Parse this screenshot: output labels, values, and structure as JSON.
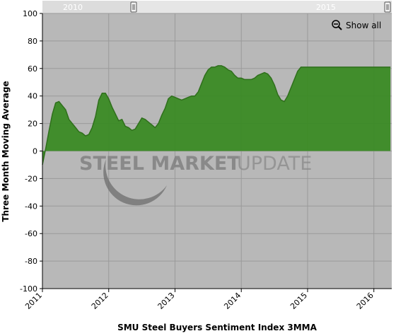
{
  "chart_data": {
    "type": "area",
    "title": "",
    "xlabel": "SMU Steel Buyers Sentiment Index 3MMA",
    "ylabel": "Three Month Moving Average",
    "ylim": [
      -100,
      100
    ],
    "yticks": [
      100,
      80,
      60,
      40,
      20,
      0,
      -20,
      -40,
      -60,
      -80,
      -100
    ],
    "xlim": [
      2011.0,
      2016.27
    ],
    "xticks": [
      {
        "value": 2011,
        "label": "2011"
      },
      {
        "value": 2012,
        "label": "2012"
      },
      {
        "value": 2013,
        "label": "2013"
      },
      {
        "value": 2014,
        "label": "2014"
      },
      {
        "value": 2015,
        "label": "2015"
      },
      {
        "value": 2016,
        "label": "2016"
      }
    ],
    "grid": true,
    "legend": "none",
    "navigator": {
      "labels": [
        {
          "value": 2010,
          "label": "2010"
        },
        {
          "value": 2015,
          "label": "2015"
        }
      ]
    },
    "zoom_button_label": "Show all",
    "watermark": {
      "bold_part": "STEEL MARKET",
      "light_part": "UPDATE"
    },
    "colors": {
      "area_fill": "#3a8a24",
      "area_line": "#2f6f1c",
      "plot_bg": "#b8b8b8",
      "grid": "#9a9a9a",
      "navigator_bg": "#dcdcdc"
    },
    "series": [
      {
        "x": [
          2011.0,
          2011.05,
          2011.1,
          2011.15,
          2011.2,
          2011.25,
          2011.3,
          2011.35,
          2011.4,
          2011.45,
          2011.5,
          2011.55,
          2011.6,
          2011.65,
          2011.7,
          2011.75,
          2011.8,
          2011.85,
          2011.9,
          2011.95,
          2012.0,
          2012.05,
          2012.1,
          2012.15,
          2012.2,
          2012.25,
          2012.3,
          2012.35,
          2012.4,
          2012.45,
          2012.5,
          2012.55,
          2012.6,
          2012.65,
          2012.7,
          2012.75,
          2012.8,
          2012.85,
          2012.9,
          2012.95,
          2013.0,
          2013.05,
          2013.1,
          2013.15,
          2013.2,
          2013.25,
          2013.3,
          2013.35,
          2013.4,
          2013.45,
          2013.5,
          2013.55,
          2013.6,
          2013.65,
          2013.7,
          2013.75,
          2013.8,
          2013.85,
          2013.9,
          2013.95,
          2014.0,
          2014.05,
          2014.1,
          2014.15,
          2014.2,
          2014.25,
          2014.3,
          2014.35,
          2014.4,
          2014.45,
          2014.5,
          2014.55,
          2014.6,
          2014.65,
          2014.7,
          2014.75,
          2014.8,
          2014.85,
          2014.9,
          2014.95,
          2015.0,
          2015.05,
          2015.1,
          2015.15,
          2015.2,
          2015.25,
          2015.3,
          2015.35,
          2015.4,
          2015.45,
          2015.5,
          2015.55,
          2015.6,
          2015.65,
          2015.7,
          2015.75,
          2015.8,
          2015.85,
          2015.9,
          2015.95,
          2016.0,
          2016.05,
          2016.1,
          2016.15,
          2016.2,
          2016.25
        ],
        "values": [
          -10,
          2,
          15,
          27,
          35,
          36,
          33,
          30,
          23,
          20,
          17,
          14,
          13,
          11,
          12,
          17,
          25,
          37,
          42,
          42,
          38,
          32,
          27,
          22,
          23,
          18,
          17,
          15,
          16,
          20,
          24,
          23,
          21,
          19,
          17,
          20,
          26,
          31,
          38,
          40,
          39,
          38,
          37,
          38,
          39,
          40,
          40,
          43,
          49,
          55,
          59,
          61,
          61,
          62,
          62,
          61,
          59,
          58,
          55,
          53,
          53,
          52,
          52,
          52,
          53,
          55,
          56,
          57,
          56,
          53,
          48,
          41,
          37,
          36,
          40,
          46,
          52,
          58,
          61,
          61,
          61,
          61,
          61,
          61,
          61,
          61,
          61,
          61,
          61,
          61,
          61,
          61,
          61,
          61,
          61,
          61,
          61,
          61,
          61,
          61,
          61,
          61,
          61,
          61,
          61,
          61
        ]
      }
    ]
  }
}
